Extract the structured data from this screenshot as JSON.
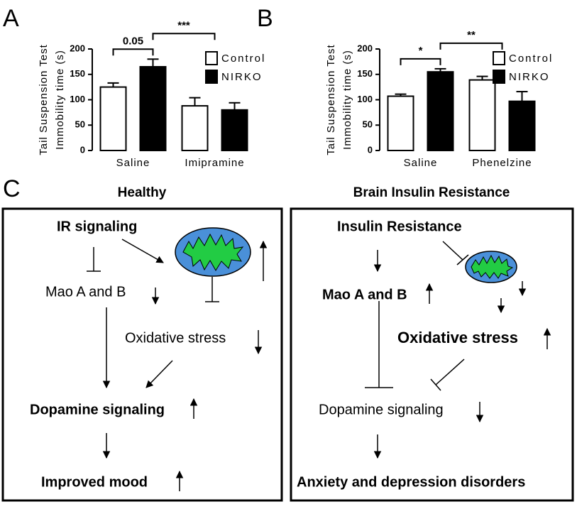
{
  "chart_data": [
    {
      "type": "bar",
      "panel": "A",
      "ylabel": [
        "Tail Suspension Test",
        "Immobility time (s)"
      ],
      "categories": [
        "Saline",
        "Imipramine"
      ],
      "series": [
        {
          "name": "Control",
          "color": "#ffffff",
          "values": [
            125,
            88
          ],
          "errors": [
            8,
            16
          ]
        },
        {
          "name": "NIRKO",
          "color": "#000000",
          "values": [
            165,
            80
          ],
          "errors": [
            15,
            14
          ]
        }
      ],
      "annotations": [
        "0.05",
        "***"
      ],
      "ylim": [
        0,
        200
      ],
      "yticks": [
        0,
        50,
        100,
        150,
        200
      ]
    },
    {
      "type": "bar",
      "panel": "B",
      "ylabel": [
        "Tail Suspension Test",
        "Immobility time (s)"
      ],
      "categories": [
        "Saline",
        "Phenelzine"
      ],
      "series": [
        {
          "name": "Control",
          "color": "#ffffff",
          "values": [
            107,
            139
          ],
          "errors": [
            4,
            7
          ]
        },
        {
          "name": "NIRKO",
          "color": "#000000",
          "values": [
            155,
            97
          ],
          "errors": [
            6,
            19
          ]
        }
      ],
      "annotations": [
        "*",
        "**"
      ],
      "ylim": [
        0,
        200
      ],
      "yticks": [
        0,
        50,
        100,
        150,
        200
      ]
    }
  ],
  "diagram": {
    "panel": "C",
    "healthy": {
      "title": "Healthy",
      "nodes": [
        "IR signaling",
        "Mao A and B",
        "Oxidative stress",
        "Dopamine signaling",
        "Improved mood"
      ]
    },
    "resistance": {
      "title": "Brain Insulin Resistance",
      "nodes": [
        "Insulin Resistance",
        "Mao A and B",
        "Oxidative stress",
        "Dopamine signaling",
        "Anxiety and depression disorders"
      ]
    }
  }
}
